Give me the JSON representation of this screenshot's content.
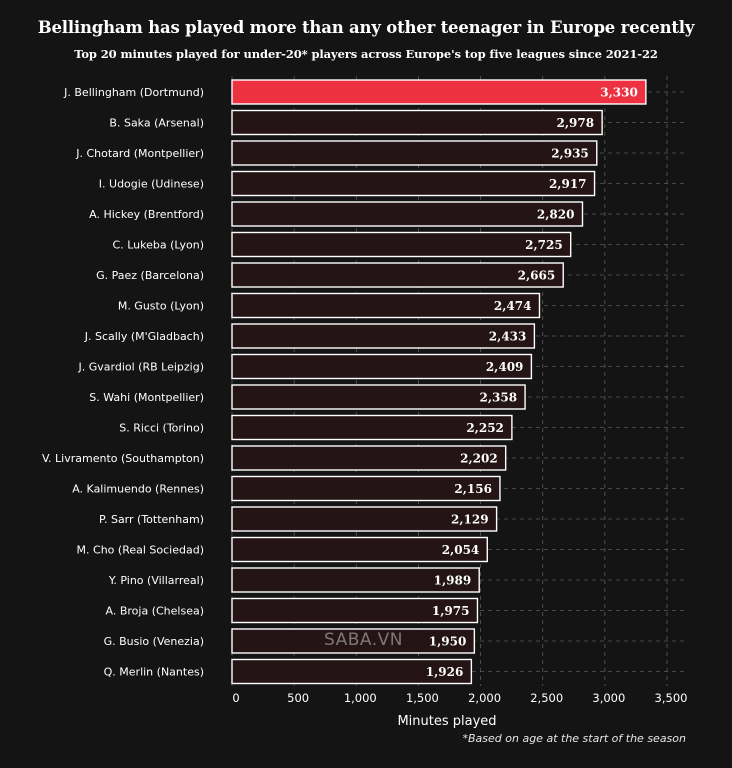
{
  "chart_data": {
    "type": "bar",
    "orientation": "horizontal",
    "title": "Bellingham has played more than any other teenager in Europe recently",
    "subtitle": "Top 20 minutes played for under-20* players across Europe's top five leagues since 2021-22",
    "xlabel": "Minutes played",
    "ylabel": "",
    "xlim": [
      0,
      3500
    ],
    "xticks": [
      0,
      500,
      1000,
      1500,
      2000,
      2500,
      3000,
      3500
    ],
    "xtick_labels": [
      "0",
      "500",
      "1,000",
      "1,500",
      "2,000",
      "2,500",
      "3,000",
      "3,500"
    ],
    "grid": true,
    "categories": [
      "J. Bellingham (Dortmund)",
      "B. Saka (Arsenal)",
      "J. Chotard (Montpellier)",
      "I. Udogie (Udinese)",
      "A. Hickey (Brentford)",
      "C. Lukeba (Lyon)",
      "G. Paez (Barcelona)",
      "M. Gusto (Lyon)",
      "J. Scally (M'Gladbach)",
      "J. Gvardiol (RB Leipzig)",
      "S. Wahi (Montpellier)",
      "S. Ricci (Torino)",
      "V. Livramento (Southampton)",
      "A. Kalimuendo (Rennes)",
      "P. Sarr (Tottenham)",
      "M. Cho (Real Sociedad)",
      "Y. Pino (Villarreal)",
      "A. Broja (Chelsea)",
      "G. Busio (Venezia)",
      "Q. Merlin (Nantes)"
    ],
    "values": [
      3330,
      2978,
      2935,
      2917,
      2820,
      2725,
      2665,
      2474,
      2433,
      2409,
      2358,
      2252,
      2202,
      2156,
      2129,
      2054,
      1989,
      1975,
      1950,
      1926
    ],
    "value_labels": [
      "3,330",
      "2,978",
      "2,935",
      "2,917",
      "2,820",
      "2,725",
      "2,665",
      "2,474",
      "2,433",
      "2,409",
      "2,358",
      "2,252",
      "2,202",
      "2,156",
      "2,129",
      "2,054",
      "1,989",
      "1,975",
      "1,950",
      "1,926"
    ],
    "highlight_index": 0
  },
  "colors": {
    "background": "#141414",
    "highlight": "#ee3140",
    "bar_fill": "#241415",
    "bar_stroke": "#ffffff",
    "grid": "#5a5a5a"
  },
  "footnote": "*Based on age at the start of the season",
  "watermark": "SABA.VN"
}
